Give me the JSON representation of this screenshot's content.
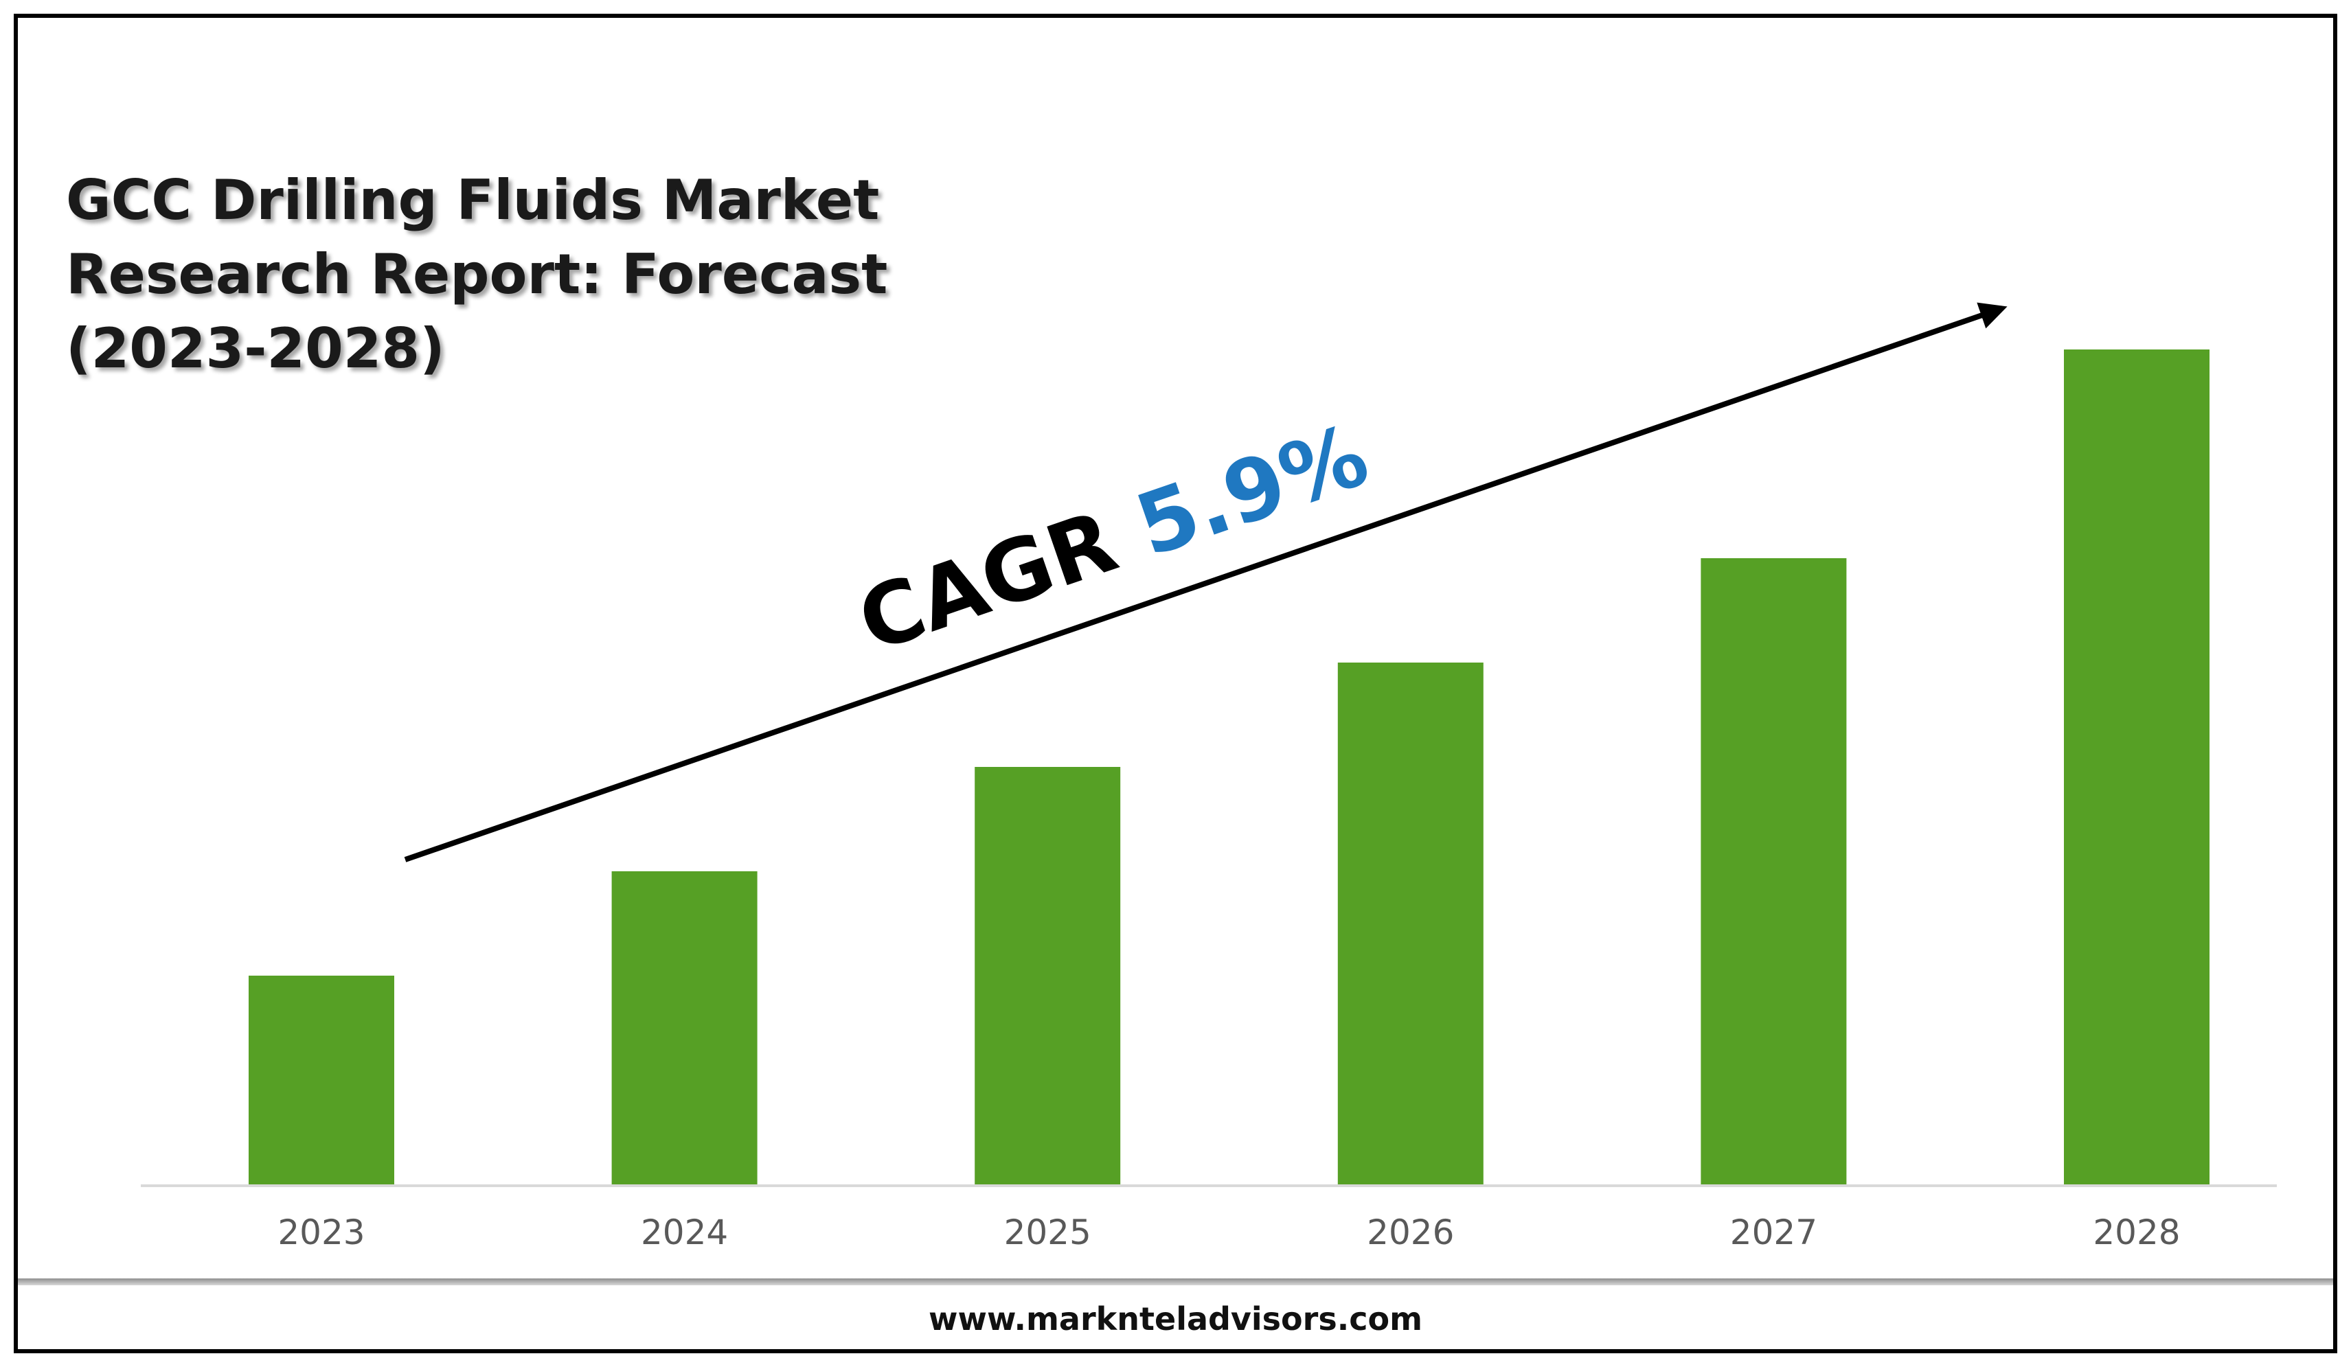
{
  "chart_data": {
    "type": "bar",
    "title": "GCC Drilling Fluids Market\nResearch Report: Forecast\n(2023-2028)",
    "categories": [
      "2023",
      "2024",
      "2025",
      "2026",
      "2027",
      "2028"
    ],
    "values": [
      1.0,
      1.5,
      2.0,
      2.5,
      3.0,
      4.0
    ],
    "xlabel": "",
    "ylabel": "",
    "ylim": [
      0,
      4.5
    ],
    "grid": false,
    "legend": "none",
    "bar_color": "#56a025",
    "annotation": {
      "prefix": "CAGR ",
      "value": "5.9%",
      "value_color": "#1f78c1"
    }
  },
  "footer": {
    "url": "www.marknteladvisors.com"
  }
}
